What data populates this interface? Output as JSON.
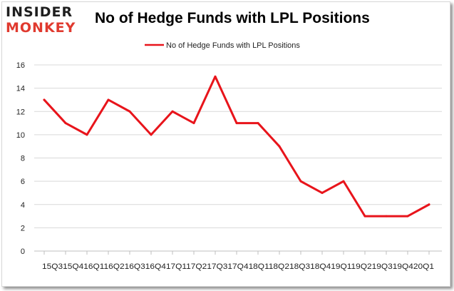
{
  "logo": {
    "line1": "INSIDER",
    "line2": "MONKEY"
  },
  "chart_data": {
    "type": "line",
    "title": "No of Hedge Funds with LPL Positions",
    "categories": [
      "15Q3",
      "15Q4",
      "16Q1",
      "16Q2",
      "16Q3",
      "16Q4",
      "17Q1",
      "17Q2",
      "17Q3",
      "17Q4",
      "18Q1",
      "18Q2",
      "18Q3",
      "18Q4",
      "19Q1",
      "19Q2",
      "19Q3",
      "19Q4",
      "20Q1"
    ],
    "x_axis_text": "15Q315Q416Q116Q216Q316Q417Q117Q217Q317Q418Q118Q218Q318Q419Q119Q219Q319Q420Q1",
    "series": [
      {
        "name": "No of Hedge Funds with LPL Positions",
        "values": [
          13,
          11,
          10,
          13,
          12,
          10,
          12,
          11,
          15,
          11,
          11,
          9,
          6,
          5,
          6,
          3,
          3,
          3,
          4
        ]
      }
    ],
    "ylim": [
      0,
      16
    ],
    "yticks": [
      0,
      2,
      4,
      6,
      8,
      10,
      12,
      14,
      16
    ],
    "grid": true,
    "legend_position": "top",
    "line_color": "#e8141b"
  }
}
